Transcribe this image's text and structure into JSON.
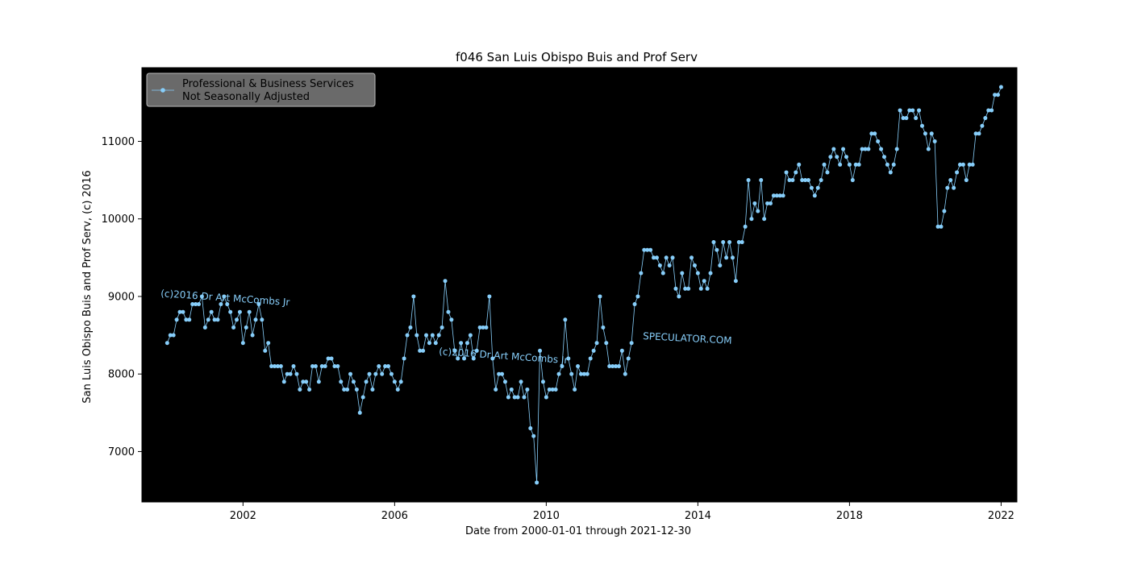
{
  "chart_data": {
    "type": "line",
    "title": "f046 San Luis Obispo Buis and Prof Serv",
    "xlabel": "Date from 2000-01-01 through 2021-12-30",
    "ylabel": "San Luis Obispo Buis and Prof Serv, (c) 2016",
    "x_start": "2000-01",
    "x_step": "monthly",
    "xlim": [
      "1999-05",
      "2022-06"
    ],
    "ylim": [
      6350,
      11950
    ],
    "x_ticks": [
      "2002",
      "2006",
      "2010",
      "2014",
      "2018",
      "2022"
    ],
    "y_ticks": [
      "7000",
      "8000",
      "9000",
      "10000",
      "11000"
    ],
    "background": "#000000",
    "legend_position": "top-left",
    "grid": false,
    "series": [
      {
        "name": "Professional & Business Services\nNot Seasonally Adjusted",
        "legend_line1": "Professional & Business Services",
        "legend_line2": "Not Seasonally Adjusted",
        "color": "#87cefa",
        "values": [
          8400,
          8500,
          8500,
          8700,
          8800,
          8800,
          8700,
          8700,
          8900,
          8900,
          8900,
          9000,
          8600,
          8700,
          8800,
          8700,
          8700,
          8900,
          9000,
          8900,
          8800,
          8600,
          8700,
          8800,
          8400,
          8600,
          8800,
          8500,
          8700,
          8900,
          8700,
          8300,
          8400,
          8100,
          8100,
          8100,
          8100,
          7900,
          8000,
          8000,
          8100,
          8000,
          7800,
          7900,
          7900,
          7800,
          8100,
          8100,
          7900,
          8100,
          8100,
          8200,
          8200,
          8100,
          8100,
          7900,
          7800,
          7800,
          8000,
          7900,
          7800,
          7500,
          7700,
          7900,
          8000,
          7800,
          8000,
          8100,
          8000,
          8100,
          8100,
          8000,
          7900,
          7800,
          7900,
          8200,
          8500,
          8600,
          9000,
          8500,
          8300,
          8300,
          8500,
          8400,
          8500,
          8400,
          8500,
          8600,
          9200,
          8800,
          8700,
          8300,
          8200,
          8400,
          8200,
          8400,
          8500,
          8200,
          8300,
          8600,
          8600,
          8600,
          9000,
          8200,
          7800,
          8000,
          8000,
          7900,
          7700,
          7800,
          7700,
          7700,
          7900,
          7700,
          7800,
          7300,
          7200,
          6600,
          8300,
          7900,
          7700,
          7800,
          7800,
          7800,
          8000,
          8100,
          8700,
          8200,
          8000,
          7800,
          8100,
          8000,
          8000,
          8000,
          8200,
          8300,
          8400,
          9000,
          8600,
          8400,
          8100,
          8100,
          8100,
          8100,
          8300,
          8000,
          8200,
          8400,
          8900,
          9000,
          9300,
          9600,
          9600,
          9600,
          9500,
          9500,
          9400,
          9300,
          9500,
          9400,
          9500,
          9100,
          9000,
          9300,
          9100,
          9100,
          9500,
          9400,
          9300,
          9100,
          9200,
          9100,
          9300,
          9700,
          9600,
          9400,
          9700,
          9500,
          9700,
          9500,
          9200,
          9700,
          9700,
          9900,
          10500,
          10000,
          10200,
          10100,
          10500,
          10000,
          10200,
          10200,
          10300,
          10300,
          10300,
          10300,
          10600,
          10500,
          10500,
          10600,
          10700,
          10500,
          10500,
          10500,
          10400,
          10300,
          10400,
          10500,
          10700,
          10600,
          10800,
          10900,
          10800,
          10700,
          10900,
          10800,
          10700,
          10500,
          10700,
          10700,
          10900,
          10900,
          10900,
          11100,
          11100,
          11000,
          10900,
          10800,
          10700,
          10600,
          10700,
          10900,
          11400,
          11300,
          11300,
          11400,
          11400,
          11300,
          11400,
          11200,
          11100,
          10900,
          11100,
          11000,
          9900,
          9900,
          10100,
          10400,
          10500,
          10400,
          10600,
          10700,
          10700,
          10500,
          10700,
          10700,
          11100,
          11100,
          11200,
          11300,
          11400,
          11400,
          11600,
          11600,
          11700
        ]
      }
    ],
    "watermarks": [
      "(c)2016 Dr Art McCombs Jr",
      "(c)2016 Dr Art McCombs Jr",
      "SPECULATOR.COM"
    ]
  }
}
